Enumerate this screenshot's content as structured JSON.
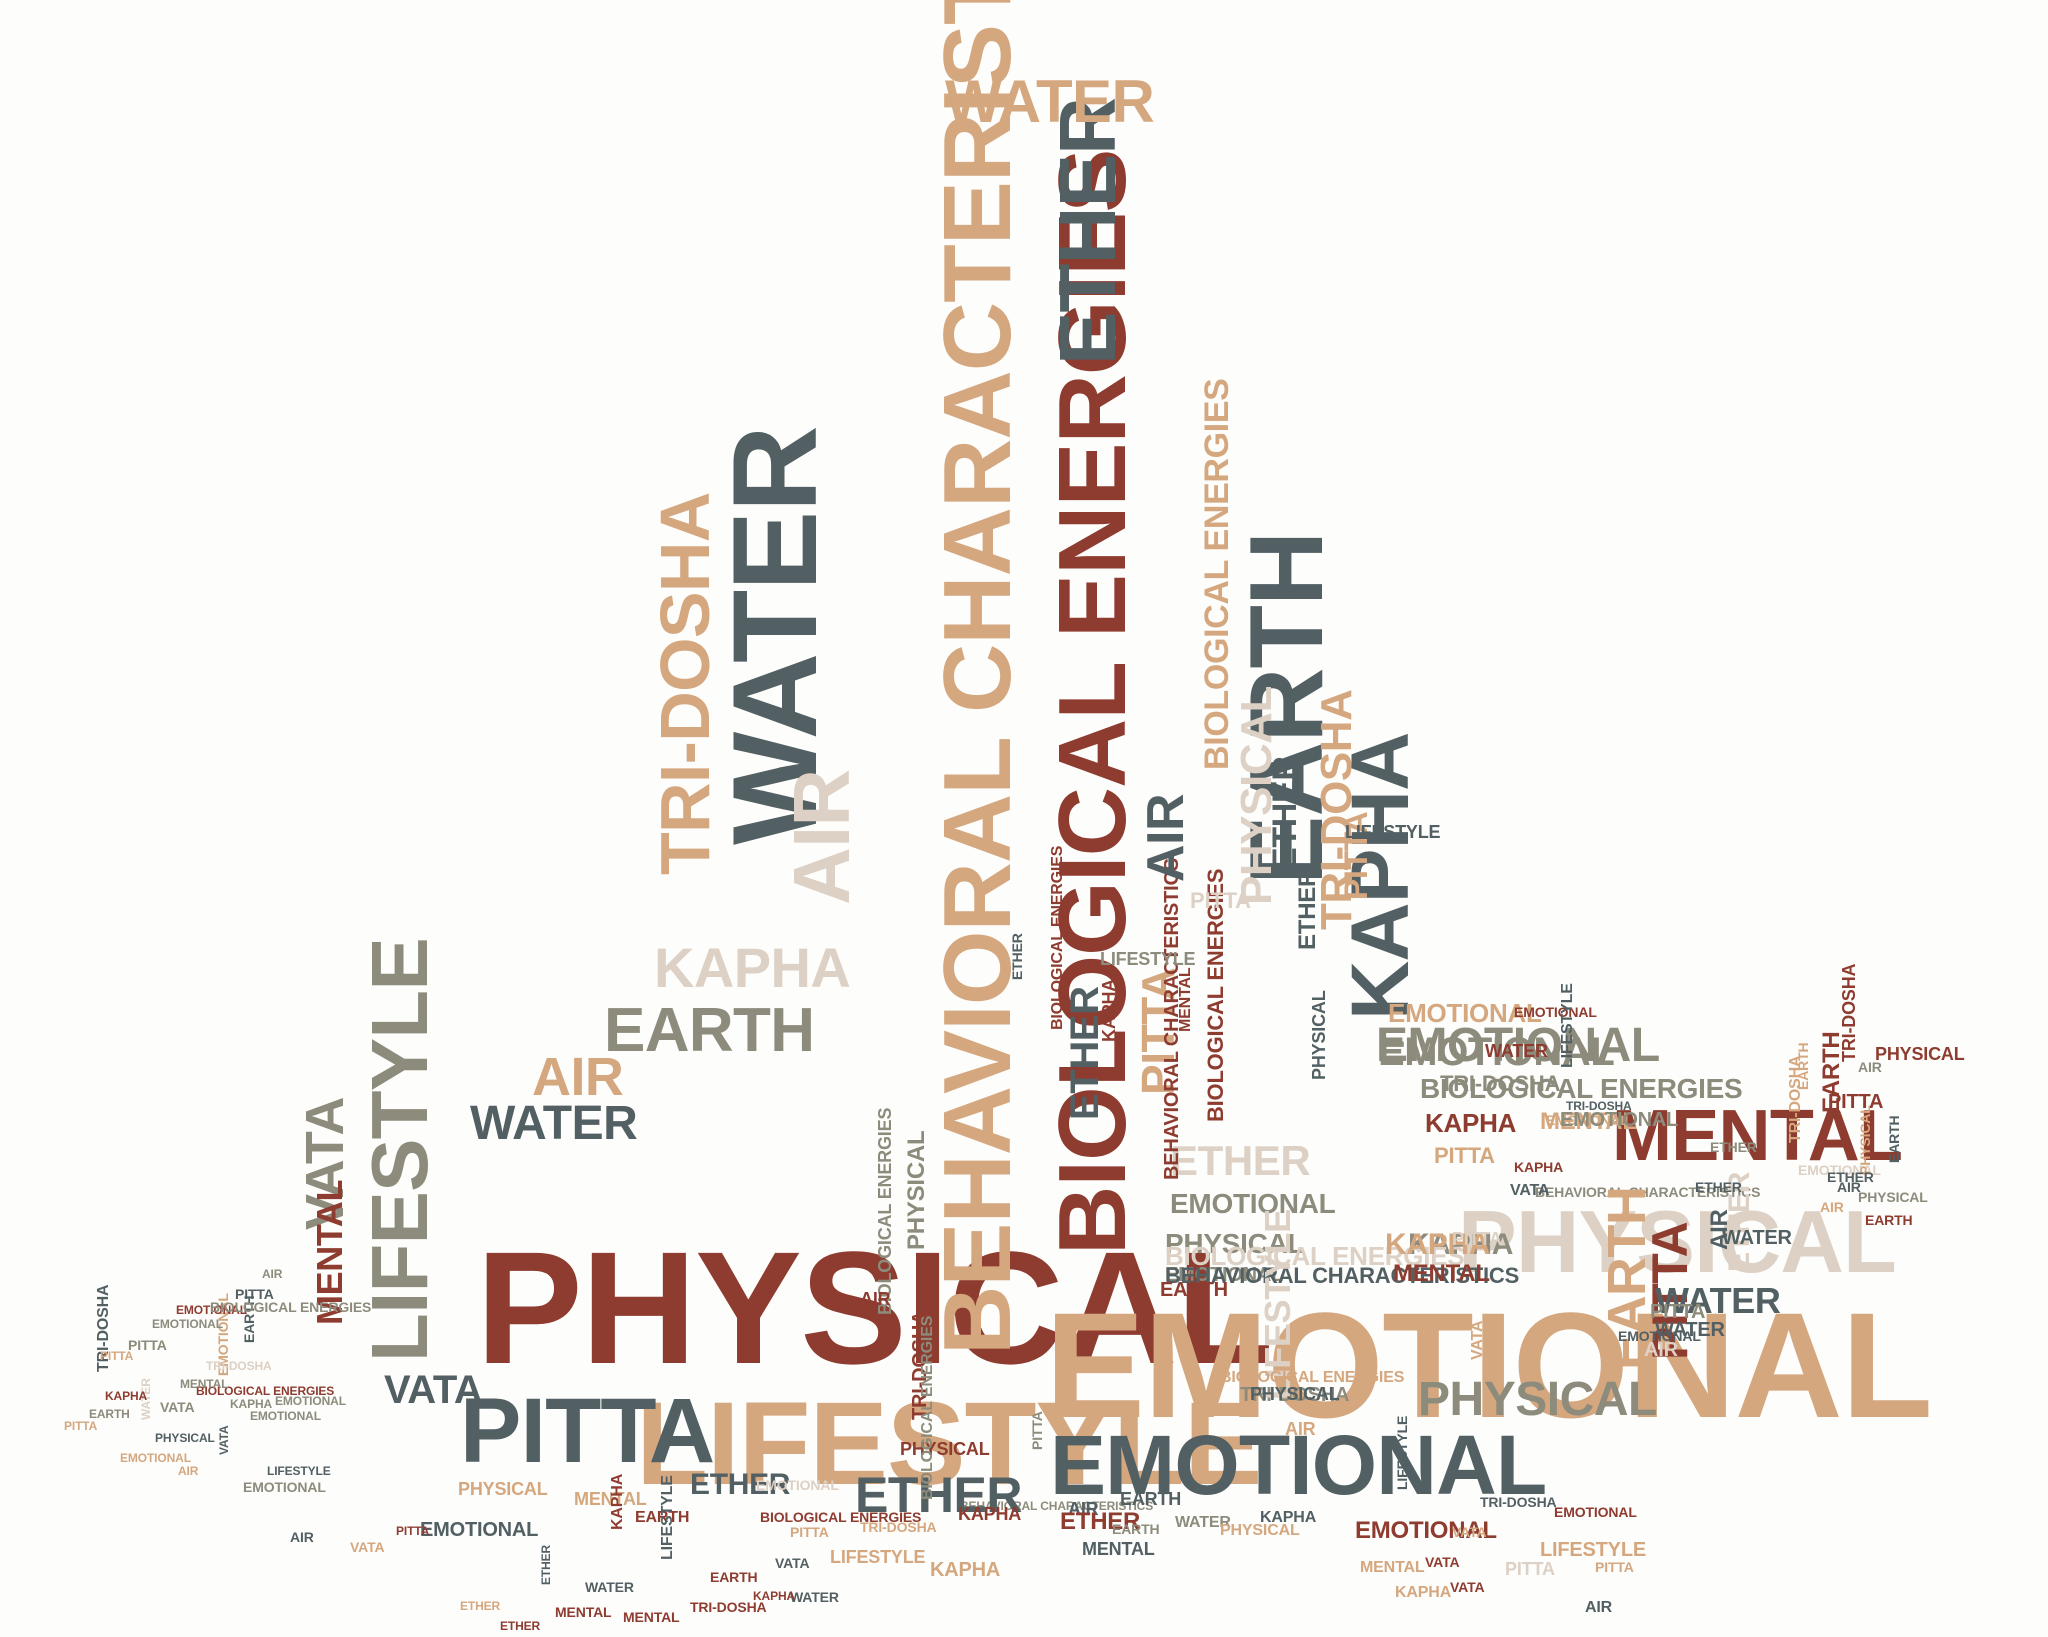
{
  "palette": {
    "red": "#8e3b30",
    "slate": "#526064",
    "tan": "#d5a77f",
    "olive": "#8d8b7c",
    "bone": "#ddd0c4",
    "background": "#fdfdfb"
  },
  "words": [
    {
      "text": "PHYSICAL",
      "color": "red"
    },
    {
      "text": "EMOTIONAL",
      "color": "tan"
    },
    {
      "text": "LIFESTYLE",
      "color": "tan"
    },
    {
      "text": "PITTA",
      "color": "slate"
    },
    {
      "text": "EMOTIONAL",
      "color": "slate"
    },
    {
      "text": "BEHAVIORAL CHARACTERISTICS",
      "color": "tan"
    },
    {
      "text": "BIOLOGICAL ENERGIES",
      "color": "red"
    },
    {
      "text": "ETHER",
      "color": "slate"
    },
    {
      "text": "WATER",
      "color": "tan"
    },
    {
      "text": "WATER",
      "color": "slate"
    },
    {
      "text": "EARTH",
      "color": "slate"
    },
    {
      "text": "KAPHA",
      "color": "slate"
    },
    {
      "text": "MENTAL",
      "color": "red"
    },
    {
      "text": "PHYSICAL",
      "color": "bone"
    },
    {
      "text": "EMOTIONAL",
      "color": "olive"
    },
    {
      "text": "BIOLOGICAL ENERGIES",
      "color": "olive"
    },
    {
      "text": "BEHAVIORAL CHARACTERISTICS",
      "color": "olive"
    },
    {
      "text": "TRI-DOSHA",
      "color": "tan"
    },
    {
      "text": "AIR",
      "color": "bone"
    },
    {
      "text": "LIFESTYLE",
      "color": "olive"
    },
    {
      "text": "VATA",
      "color": "olive"
    },
    {
      "text": "MENTAL",
      "color": "red"
    },
    {
      "text": "EARTH",
      "color": "olive"
    },
    {
      "text": "WATER",
      "color": "slate"
    },
    {
      "text": "AIR",
      "color": "tan"
    },
    {
      "text": "KAPHA",
      "color": "bone"
    },
    {
      "text": "PHYSICAL",
      "color": "olive"
    },
    {
      "text": "VATA",
      "color": "slate"
    },
    {
      "text": "MENTAL",
      "color": "tan"
    },
    {
      "text": "ETHER",
      "color": "bone"
    },
    {
      "text": "EMOTIONAL",
      "color": "olive"
    },
    {
      "text": "PHYSICAL",
      "color": "olive"
    },
    {
      "text": "ETHER",
      "color": "slate"
    },
    {
      "text": "KAPHA",
      "color": "olive"
    },
    {
      "text": "EMOTIONAL",
      "color": "olive"
    },
    {
      "text": "BIOLOGICAL ENERGIES",
      "color": "bone"
    },
    {
      "text": "BEHAVIORAL CHARACTERISTICS",
      "color": "slate"
    },
    {
      "text": "KAPHA",
      "color": "tan"
    },
    {
      "text": "MENTAL",
      "color": "red"
    },
    {
      "text": "EARTH",
      "color": "tan"
    },
    {
      "text": "PITTA",
      "color": "red"
    },
    {
      "text": "WATER",
      "color": "slate"
    },
    {
      "text": "WATER",
      "color": "slate"
    },
    {
      "text": "ETHER",
      "color": "bone"
    },
    {
      "text": "TRI-DOSHA",
      "color": "olive"
    },
    {
      "text": "LIFESTYLE",
      "color": "bone"
    },
    {
      "text": "EARTH",
      "color": "red"
    },
    {
      "text": "PITTA",
      "color": "tan"
    },
    {
      "text": "PHYSICAL",
      "color": "bone"
    },
    {
      "text": "ETHER",
      "color": "slate"
    },
    {
      "text": "TRI-DOSHA",
      "color": "tan"
    },
    {
      "text": "PITTA",
      "color": "tan"
    },
    {
      "text": "LIFESTYLE",
      "color": "slate"
    },
    {
      "text": "EMOTIONAL",
      "color": "olive"
    },
    {
      "text": "EMOTIONAL",
      "color": "tan"
    },
    {
      "text": "BEHAVIORAL CHARACTERISTICS",
      "color": "red"
    },
    {
      "text": "BIOLOGICAL ENERGIES",
      "color": "red"
    },
    {
      "text": "ETHER",
      "color": "slate"
    },
    {
      "text": "PHYSICAL",
      "color": "slate"
    },
    {
      "text": "VATA",
      "color": "tan"
    },
    {
      "text": "PITTA",
      "color": "tan"
    },
    {
      "text": "WATER",
      "color": "red"
    },
    {
      "text": "EMOTIONAL",
      "color": "red"
    },
    {
      "text": "TRI-DOSHA",
      "color": "olive"
    },
    {
      "text": "KAPHA",
      "color": "red"
    },
    {
      "text": "EMOTIONAL",
      "color": "tan"
    },
    {
      "text": "KAPHA",
      "color": "red"
    },
    {
      "text": "VATA",
      "color": "slate"
    },
    {
      "text": "PITTA",
      "color": "bone"
    },
    {
      "text": "TRI-DOSHA",
      "color": "slate"
    },
    {
      "text": "LIFESTYLE",
      "color": "slate"
    },
    {
      "text": "EMOTIONAL",
      "color": "olive"
    },
    {
      "text": "ETHER",
      "color": "slate"
    },
    {
      "text": "ETHER",
      "color": "olive"
    },
    {
      "text": "PITTA",
      "color": "red"
    },
    {
      "text": "EARTH",
      "color": "tan"
    },
    {
      "text": "EMOTIONAL",
      "color": "bone"
    },
    {
      "text": "PHYSICAL",
      "color": "tan"
    },
    {
      "text": "ETHER",
      "color": "slate"
    },
    {
      "text": "AIR",
      "color": "slate"
    },
    {
      "text": "WATER",
      "color": "slate"
    },
    {
      "text": "TRI-DOSHA",
      "color": "tan"
    },
    {
      "text": "EARTH",
      "color": "red"
    },
    {
      "text": "PHYSICAL",
      "color": "red"
    },
    {
      "text": "AIR",
      "color": "olive"
    },
    {
      "text": "TRI-DOSHA",
      "color": "red"
    },
    {
      "text": "PHYSICAL",
      "color": "olive"
    },
    {
      "text": "EARTH",
      "color": "red"
    },
    {
      "text": "AIR",
      "color": "slate"
    },
    {
      "text": "EARTH",
      "color": "slate"
    },
    {
      "text": "AIR",
      "color": "tan"
    },
    {
      "text": "PITTA",
      "color": "olive"
    },
    {
      "text": "AIR",
      "color": "bone"
    },
    {
      "text": "EMOTIONAL",
      "color": "slate"
    },
    {
      "text": "BEHAVIORAL CHARACTERISTICS",
      "color": "olive"
    },
    {
      "text": "BIOLOGICAL ENERGIES",
      "color": "olive"
    },
    {
      "text": "PHYSICAL",
      "color": "olive"
    },
    {
      "text": "AIR",
      "color": "red"
    },
    {
      "text": "ETHER",
      "color": "slate"
    },
    {
      "text": "PHYSICAL",
      "color": "red"
    },
    {
      "text": "TRI-DOSHA",
      "color": "red"
    },
    {
      "text": "BIOLOGICAL ENERGIES",
      "color": "olive"
    },
    {
      "text": "PHYSICAL",
      "color": "slate"
    },
    {
      "text": "AIR",
      "color": "tan"
    },
    {
      "text": "BIOLOGICAL ENERGIES",
      "color": "tan"
    },
    {
      "text": "BIOLOGICAL ENERGIES",
      "color": "red"
    },
    {
      "text": "KAPHA",
      "color": "red"
    },
    {
      "text": "MENTAL",
      "color": "red"
    },
    {
      "text": "LIFESTYLE",
      "color": "olive"
    },
    {
      "text": "ETHER",
      "color": "slate"
    },
    {
      "text": "AIR",
      "color": "slate"
    },
    {
      "text": "BIOLOGICAL ENERGIES",
      "color": "tan"
    },
    {
      "text": "PITTA",
      "color": "bone"
    },
    {
      "text": "PITTA",
      "color": "olive"
    },
    {
      "text": "AIR",
      "color": "slate"
    },
    {
      "text": "ETHER",
      "color": "red"
    },
    {
      "text": "MENTAL",
      "color": "slate"
    },
    {
      "text": "EARTH",
      "color": "olive"
    },
    {
      "text": "KAPHA",
      "color": "red"
    },
    {
      "text": "KAPHA",
      "color": "tan"
    },
    {
      "text": "EARTH",
      "color": "slate"
    },
    {
      "text": "WATER",
      "color": "olive"
    },
    {
      "text": "KAPHA",
      "color": "slate"
    },
    {
      "text": "PHYSICAL",
      "color": "tan"
    },
    {
      "text": "EMOTIONAL",
      "color": "red"
    },
    {
      "text": "VATA",
      "color": "red"
    },
    {
      "text": "TRI-DOSHA",
      "color": "slate"
    },
    {
      "text": "LIFESTYLE",
      "color": "slate"
    },
    {
      "text": "VATA",
      "color": "tan"
    },
    {
      "text": "MENTAL",
      "color": "tan"
    },
    {
      "text": "KAPHA",
      "color": "tan"
    },
    {
      "text": "VATA",
      "color": "red"
    },
    {
      "text": "PITTA",
      "color": "bone"
    },
    {
      "text": "LIFESTYLE",
      "color": "tan"
    },
    {
      "text": "EMOTIONAL",
      "color": "red"
    },
    {
      "text": "PITTA",
      "color": "tan"
    },
    {
      "text": "AIR",
      "color": "slate"
    },
    {
      "text": "ETHER",
      "color": "slate"
    },
    {
      "text": "MENTAL",
      "color": "tan"
    },
    {
      "text": "EARTH",
      "color": "red"
    },
    {
      "text": "KAPHA",
      "color": "red"
    },
    {
      "text": "EMOTIONAL",
      "color": "slate"
    },
    {
      "text": "PHYSICAL",
      "color": "tan"
    },
    {
      "text": "BIOLOGICAL ENERGIES",
      "color": "red"
    },
    {
      "text": "PITTA",
      "color": "tan"
    },
    {
      "text": "EMOTIONAL",
      "color": "bone"
    },
    {
      "text": "TRI-DOSHA",
      "color": "tan"
    },
    {
      "text": "LIFESTYLE",
      "color": "tan"
    },
    {
      "text": "VATA",
      "color": "slate"
    },
    {
      "text": "WATER",
      "color": "slate"
    },
    {
      "text": "EARTH",
      "color": "red"
    },
    {
      "text": "LIFESTYLE",
      "color": "slate"
    },
    {
      "text": "WATER",
      "color": "slate"
    },
    {
      "text": "TRI-DOSHA",
      "color": "red"
    },
    {
      "text": "KAPHA",
      "color": "red"
    },
    {
      "text": "MENTAL",
      "color": "red"
    },
    {
      "text": "ETHER",
      "color": "red"
    },
    {
      "text": "ETHER",
      "color": "slate"
    },
    {
      "text": "MENTAL",
      "color": "red"
    },
    {
      "text": "ETHER",
      "color": "tan"
    },
    {
      "text": "AIR",
      "color": "slate"
    },
    {
      "text": "VATA",
      "color": "tan"
    },
    {
      "text": "PITTA",
      "color": "red"
    },
    {
      "text": "EMOTIONAL",
      "color": "olive"
    },
    {
      "text": "LIFESTYLE",
      "color": "slate"
    },
    {
      "text": "VATA",
      "color": "slate"
    },
    {
      "text": "AIR",
      "color": "tan"
    },
    {
      "text": "PHYSICAL",
      "color": "slate"
    },
    {
      "text": "WATER",
      "color": "bone"
    },
    {
      "text": "EMOTIONAL",
      "color": "tan"
    },
    {
      "text": "VATA",
      "color": "olive"
    },
    {
      "text": "BIOLOGICAL ENERGIES",
      "color": "red"
    },
    {
      "text": "KAPHA",
      "color": "olive"
    },
    {
      "text": "EMOTIONAL",
      "color": "olive"
    },
    {
      "text": "EMOTIONAL",
      "color": "tan"
    },
    {
      "text": "EMOTIONAL",
      "color": "olive"
    },
    {
      "text": "EARTH",
      "color": "slate"
    },
    {
      "text": "TRI-DOSHA",
      "color": "bone"
    },
    {
      "text": "MENTAL",
      "color": "olive"
    },
    {
      "text": "KAPHA",
      "color": "red"
    },
    {
      "text": "EARTH",
      "color": "olive"
    },
    {
      "text": "PITTA",
      "color": "tan"
    },
    {
      "text": "TRI-DOSHA",
      "color": "slate"
    },
    {
      "text": "PITTA",
      "color": "tan"
    },
    {
      "text": "PITTA",
      "color": "olive"
    },
    {
      "text": "EMOTIONAL",
      "color": "olive"
    },
    {
      "text": "EMOTIONAL",
      "color": "red"
    },
    {
      "text": "BIOLOGICAL ENERGIES",
      "color": "olive"
    },
    {
      "text": "PITTA",
      "color": "slate"
    },
    {
      "text": "AIR",
      "color": "olive"
    },
    {
      "text": "ETHER",
      "color": "slate"
    },
    {
      "text": "PHYSICAL",
      "color": "tan"
    },
    {
      "text": "LIFESTYLE",
      "color": "bone"
    },
    {
      "text": "VATA",
      "color": "slate"
    },
    {
      "text": "PHYSICAL",
      "color": "red"
    },
    {
      "text": "ETHER",
      "color": "slate"
    },
    {
      "text": "TRI-DOSHA",
      "color": "red"
    },
    {
      "text": "EMOTIONAL",
      "color": "slate"
    },
    {
      "text": "LIFESTYLE",
      "color": "slate"
    },
    {
      "text": "LIFESTYLE",
      "color": "slate"
    },
    {
      "text": "PITTA",
      "color": "olive"
    },
    {
      "text": "ETHER",
      "color": "red"
    },
    {
      "text": "ETHER",
      "color": "slate"
    },
    {
      "text": "BIOLOGICAL ENERGIES",
      "color": "red"
    }
  ]
}
